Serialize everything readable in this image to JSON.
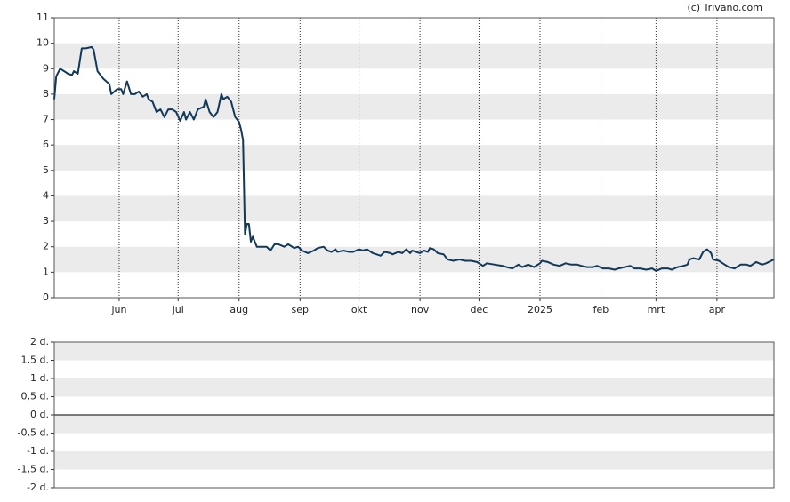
{
  "chart_data": [
    {
      "type": "line",
      "source": "(c) Trivano.com",
      "x": [
        0,
        1,
        3,
        5,
        7,
        9,
        10,
        12,
        14,
        16,
        19,
        20,
        22,
        25,
        28,
        29,
        32,
        34,
        35,
        37,
        39,
        41,
        43,
        45,
        47,
        48,
        50,
        52,
        54,
        56,
        58,
        60,
        62,
        64,
        66,
        67,
        69,
        71,
        73,
        76,
        77,
        79,
        81,
        83,
        85,
        86,
        88,
        90,
        92,
        94,
        95,
        96,
        97,
        98,
        99,
        100,
        101,
        103,
        105,
        108,
        110,
        112,
        114,
        117,
        119,
        122,
        124,
        126,
        129,
        132,
        134,
        137,
        139,
        141,
        143,
        144,
        147,
        150,
        152,
        155,
        157,
        159,
        161,
        162,
        164,
        166,
        168,
        171,
        172,
        175,
        177,
        179,
        181,
        182,
        184,
        186,
        188,
        190,
        191,
        193,
        195,
        198,
        200,
        203,
        206,
        209,
        212,
        215,
        218,
        220,
        224,
        228,
        230,
        233,
        236,
        238,
        241,
        244,
        247,
        248,
        251,
        254,
        257,
        260,
        263,
        266,
        268,
        271,
        274,
        276,
        279,
        282,
        285,
        287,
        290,
        293,
        295,
        298,
        301,
        304,
        306,
        309,
        312,
        314,
        317,
        320,
        322,
        323,
        325,
        328,
        330,
        332,
        334,
        335,
        338,
        341,
        343,
        346,
        349,
        352,
        354,
        357,
        360,
        362,
        366
      ],
      "series": [
        {
          "name": null,
          "color": "#12395a",
          "values": [
            7.8,
            8.7,
            9.0,
            8.9,
            8.8,
            8.75,
            8.9,
            8.8,
            9.8,
            9.8,
            9.85,
            9.75,
            8.9,
            8.6,
            8.4,
            8.0,
            8.2,
            8.2,
            8.0,
            8.5,
            8.0,
            8.0,
            8.1,
            7.9,
            8.0,
            7.8,
            7.7,
            7.3,
            7.4,
            7.1,
            7.4,
            7.4,
            7.3,
            6.95,
            7.3,
            7.0,
            7.3,
            7.0,
            7.4,
            7.5,
            7.8,
            7.3,
            7.1,
            7.3,
            8.0,
            7.8,
            7.9,
            7.7,
            7.1,
            6.9,
            6.6,
            6.2,
            2.5,
            2.9,
            2.9,
            2.2,
            2.4,
            2.0,
            2.0,
            2.0,
            1.85,
            2.1,
            2.1,
            2.0,
            2.1,
            1.95,
            2.0,
            1.85,
            1.75,
            1.85,
            1.95,
            2.0,
            1.85,
            1.8,
            1.9,
            1.8,
            1.85,
            1.8,
            1.8,
            1.9,
            1.85,
            1.9,
            1.8,
            1.75,
            1.7,
            1.65,
            1.8,
            1.75,
            1.7,
            1.8,
            1.75,
            1.9,
            1.75,
            1.85,
            1.8,
            1.75,
            1.85,
            1.8,
            1.95,
            1.9,
            1.75,
            1.7,
            1.5,
            1.45,
            1.5,
            1.45,
            1.45,
            1.4,
            1.25,
            1.35,
            1.3,
            1.25,
            1.2,
            1.15,
            1.3,
            1.2,
            1.3,
            1.2,
            1.35,
            1.45,
            1.4,
            1.3,
            1.25,
            1.35,
            1.3,
            1.3,
            1.25,
            1.2,
            1.2,
            1.25,
            1.15,
            1.15,
            1.1,
            1.15,
            1.2,
            1.25,
            1.15,
            1.15,
            1.1,
            1.15,
            1.05,
            1.15,
            1.15,
            1.1,
            1.2,
            1.25,
            1.3,
            1.5,
            1.55,
            1.5,
            1.8,
            1.9,
            1.75,
            1.5,
            1.45,
            1.3,
            1.2,
            1.15,
            1.3,
            1.3,
            1.25,
            1.4,
            1.3,
            1.35,
            1.5
          ]
        }
      ],
      "xlim": [
        0,
        366
      ],
      "xticks": [
        {
          "value": 33,
          "label": "jun"
        },
        {
          "value": 63,
          "label": "jul"
        },
        {
          "value": 94,
          "label": "aug"
        },
        {
          "value": 125,
          "label": "sep"
        },
        {
          "value": 155,
          "label": "okt"
        },
        {
          "value": 186,
          "label": "nov"
        },
        {
          "value": 216,
          "label": "dec"
        },
        {
          "value": 247,
          "label": "2025"
        },
        {
          "value": 278,
          "label": "feb"
        },
        {
          "value": 306,
          "label": "mrt"
        },
        {
          "value": 337,
          "label": "apr"
        }
      ],
      "ylim": [
        0,
        11
      ],
      "yticks": [
        0,
        1,
        2,
        3,
        4,
        5,
        6,
        7,
        8,
        9,
        10,
        11
      ],
      "grid": true
    },
    {
      "type": "line",
      "series": [],
      "ylim": [
        -2,
        2
      ],
      "yticks": [
        {
          "value": 2,
          "label": "2 d."
        },
        {
          "value": 1.5,
          "label": "1,5 d."
        },
        {
          "value": 1,
          "label": "1 d."
        },
        {
          "value": 0.5,
          "label": "0,5 d."
        },
        {
          "value": 0,
          "label": "0 d."
        },
        {
          "value": -0.5,
          "label": "-0,5 d."
        },
        {
          "value": -1,
          "label": "-1 d."
        },
        {
          "value": -1.5,
          "label": "-1,5 d."
        },
        {
          "value": -2,
          "label": "-2 d."
        }
      ],
      "grid": true
    }
  ]
}
